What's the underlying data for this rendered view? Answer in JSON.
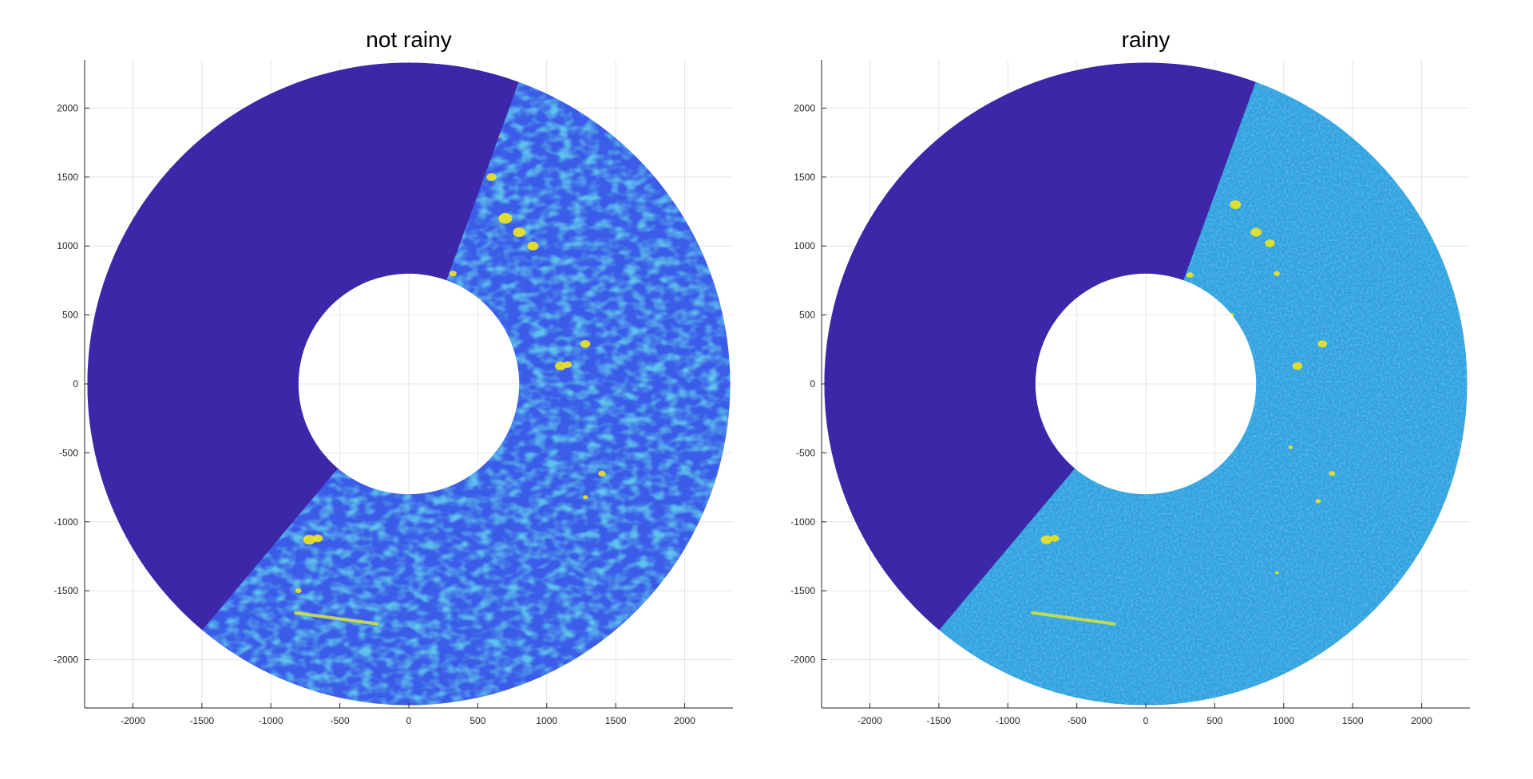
{
  "chart_data": [
    {
      "type": "heatmap",
      "title": "not rainy",
      "xlabel": "",
      "ylabel": "",
      "xlim": [
        -2350,
        2350
      ],
      "ylim": [
        -2350,
        2350
      ],
      "x_ticks": [
        -2000,
        -1500,
        -1000,
        -500,
        0,
        500,
        1000,
        1500,
        2000
      ],
      "y_ticks": [
        2000,
        1500,
        1000,
        500,
        0,
        -500,
        -1000,
        -1500,
        -2000
      ],
      "grid": true,
      "inner_radius": 800,
      "outer_radius": 2330,
      "blank_sector_deg": [
        20,
        140
      ],
      "colors": {
        "blank_sector": "#3d26a8",
        "background_field": "#3b5ce8",
        "texture_field": "#21a8d8",
        "hotspot": "#f0e41e"
      }
    },
    {
      "type": "heatmap",
      "title": "rainy",
      "xlabel": "",
      "ylabel": "",
      "xlim": [
        -2350,
        2350
      ],
      "ylim": [
        -2350,
        2350
      ],
      "x_ticks": [
        -2000,
        -1500,
        -1000,
        -500,
        0,
        500,
        1000,
        1500,
        2000
      ],
      "y_ticks": [
        2000,
        1500,
        1000,
        500,
        0,
        -500,
        -1000,
        -1500,
        -2000
      ],
      "grid": true,
      "inner_radius": 800,
      "outer_radius": 2330,
      "blank_sector_deg": [
        20,
        140
      ],
      "colors": {
        "blank_sector": "#3d26a8",
        "background_field": "#2fa3de",
        "texture_field": "#1fb5c8",
        "hotspot": "#f0e41e"
      }
    }
  ]
}
